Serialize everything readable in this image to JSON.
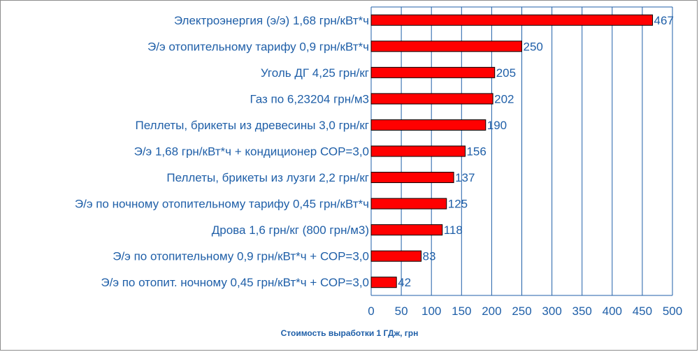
{
  "chart_data": {
    "type": "bar",
    "orientation": "horizontal",
    "categories": [
      "Электроэнергия (э/э) 1,68 грн/кВт*ч",
      "Э/э отопительному тарифу 0,9 грн/кВт*ч",
      "Уголь ДГ 4,25 грн/кг",
      "Газ по 6,23204 грн/м3",
      "Пеллеты, брикеты из древесины 3,0 грн/кг",
      "Э/э 1,68 грн/кВт*ч  + кондиционер СОР=3,0",
      "Пеллеты, брикеты из лузги 2,2 грн/кг",
      "Э/э по ночному отопительному тарифу 0,45 грн/кВт*ч",
      "Дрова 1,6 грн/кг (800 грн/м3)",
      "Э/э по отопительному 0,9 грн/кВт*ч + СОР=3,0",
      "Э/э по отопит. ночному 0,45 грн/кВт*ч + СОР=3,0"
    ],
    "values": [
      467,
      250,
      205,
      202,
      190,
      156,
      137,
      125,
      118,
      83,
      42
    ],
    "value_labels": [
      "467",
      "250",
      "205",
      "202",
      "190",
      "156",
      "137",
      "125",
      "118",
      "83",
      "42"
    ],
    "xlabel": "Стоимость выработки 1 ГДж, грн",
    "ylabel": "",
    "title": "",
    "xlim": [
      0,
      500
    ],
    "xticks": [
      0,
      50,
      100,
      150,
      200,
      250,
      300,
      350,
      400,
      450,
      500
    ],
    "grid": "vertical",
    "legend": "none",
    "colors": {
      "bar_fill": "#ff0000",
      "bar_stroke": "#000000",
      "text": "#1f5fa8",
      "grid": "#1f5fa8",
      "axis_title": "#1f5fa8"
    }
  }
}
